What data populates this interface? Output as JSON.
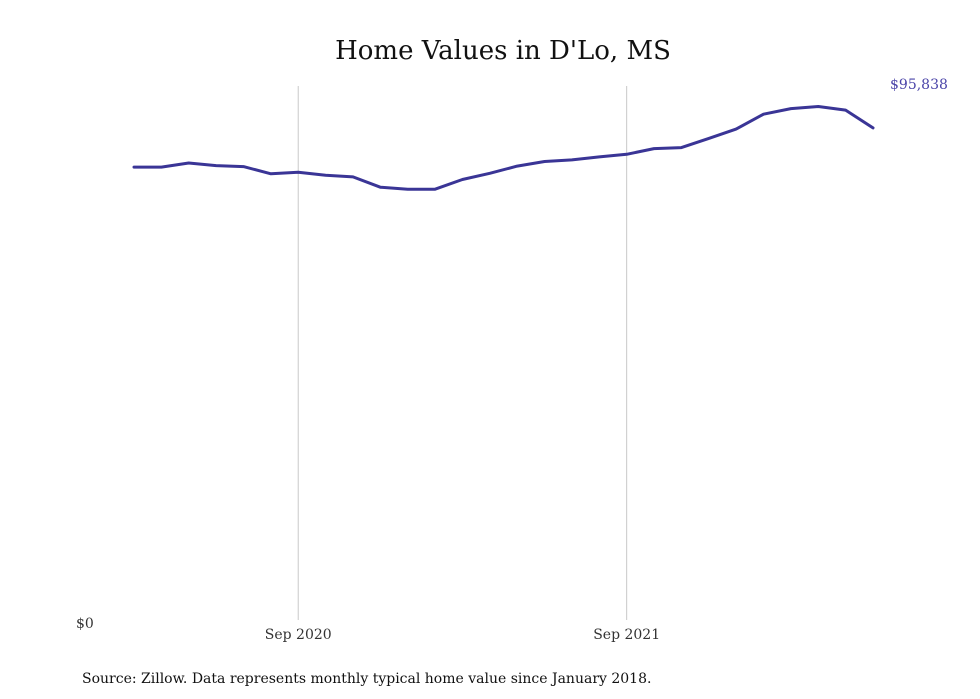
{
  "chart_data": {
    "type": "line",
    "title": "Home Values in D'Lo, MS",
    "xlabel": "",
    "ylabel": "",
    "x": [
      "2020-03",
      "2020-04",
      "2020-05",
      "2020-06",
      "2020-07",
      "2020-08",
      "2020-09",
      "2020-10",
      "2020-11",
      "2020-12",
      "2021-01",
      "2021-02",
      "2021-03",
      "2021-04",
      "2021-05",
      "2021-06",
      "2021-07",
      "2021-08",
      "2021-09",
      "2021-10",
      "2021-11",
      "2021-12",
      "2022-01",
      "2022-02",
      "2022-03",
      "2022-04",
      "2022-05",
      "2022-06"
    ],
    "series": [
      {
        "name": "",
        "values": [
          88200,
          88200,
          89000,
          88500,
          88300,
          86900,
          87200,
          86600,
          86300,
          84300,
          83900,
          83900,
          85800,
          87000,
          88400,
          89300,
          89600,
          90200,
          90700,
          91800,
          92000,
          93800,
          95600,
          98500,
          99600,
          100000,
          99300,
          95838
        ]
      }
    ],
    "ylim": [
      0,
      104000
    ],
    "y_tick_labels": [
      "$0"
    ],
    "x_tick_labels": [
      {
        "x": "2020-09",
        "label": "Sep 2020"
      },
      {
        "x": "2021-09",
        "label": "Sep 2021"
      }
    ],
    "end_label": "$95,838",
    "grid": {
      "vertical": true,
      "horizontal": false
    },
    "line_color": "#3a3596",
    "end_label_color": "#4a44a8",
    "source_note": "Source: Zillow. Data represents monthly typical home value since January 2018."
  }
}
